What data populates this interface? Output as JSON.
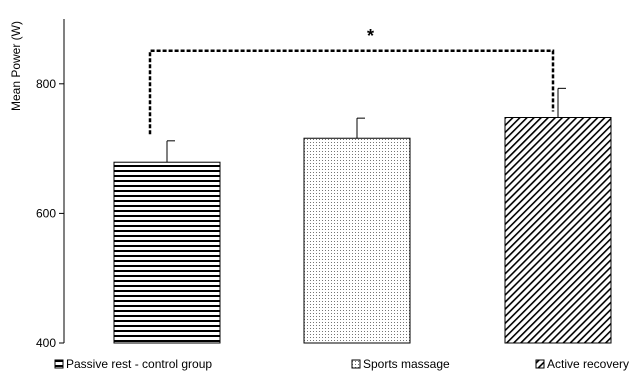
{
  "chart_data": {
    "type": "bar",
    "categories": [
      "Passive rest - control group",
      "Sports massage",
      "Active recovery"
    ],
    "values": [
      679,
      716,
      748
    ],
    "error_bars": [
      33,
      31,
      45
    ],
    "patterns": [
      "horizontal-lines",
      "dots",
      "diagonal-hatch"
    ],
    "ylabel": "Mean Power (W)",
    "xlabel": "",
    "ylim": [
      400,
      900
    ],
    "yticks": [
      400,
      600,
      800
    ],
    "grid": false,
    "legend_position": "bottom",
    "significance": {
      "label": "*",
      "from_category": 0,
      "to_category": 2,
      "bracket_level": 800
    },
    "colors": {
      "bar_fill": "#000000",
      "background": "#ffffff",
      "axis": "#000000"
    }
  }
}
